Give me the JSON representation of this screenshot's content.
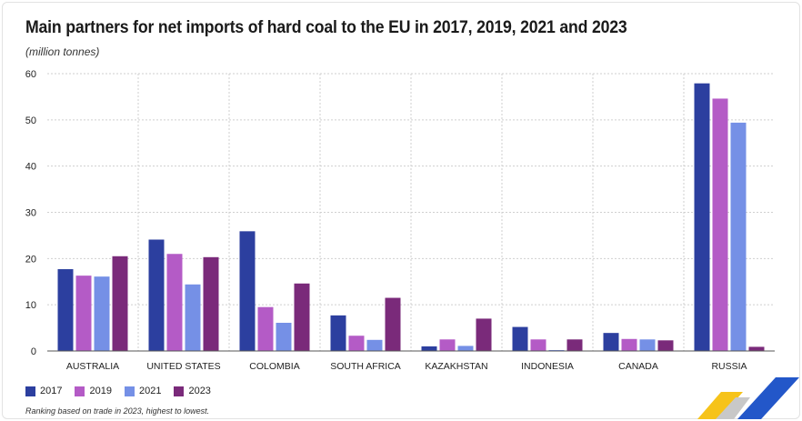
{
  "title": "Main partners for net imports of hard coal to the EU in 2017, 2019, 2021 and 2023",
  "subtitle": "(million tonnes)",
  "note": "Ranking based on trade in 2023, highest to lowest.",
  "legend": [
    {
      "label": "2017",
      "color": "#2c3f9f"
    },
    {
      "label": "2019",
      "color": "#b45bc6"
    },
    {
      "label": "2021",
      "color": "#7590e6"
    },
    {
      "label": "2023",
      "color": "#7a2a7a"
    }
  ],
  "chart_data": {
    "type": "bar",
    "title": "Main partners for net imports of hard coal to the EU in 2017, 2019, 2021 and 2023",
    "ylabel": "(million tonnes)",
    "ylim": [
      0,
      60
    ],
    "yticks": [
      0,
      10,
      20,
      30,
      40,
      50,
      60
    ],
    "grid": true,
    "legend_position": "bottom-left",
    "categories": [
      "AUSTRALIA",
      "UNITED STATES",
      "COLOMBIA",
      "SOUTH AFRICA",
      "KAZAKHSTAN",
      "INDONESIA",
      "CANADA",
      "RUSSIA"
    ],
    "series": [
      {
        "name": "2017",
        "color": "#2c3f9f",
        "values": [
          17.7,
          24.1,
          25.9,
          7.7,
          1.0,
          5.2,
          3.9,
          57.9
        ]
      },
      {
        "name": "2019",
        "color": "#b45bc6",
        "values": [
          16.3,
          21.0,
          9.5,
          3.3,
          2.5,
          2.5,
          2.6,
          54.6
        ]
      },
      {
        "name": "2021",
        "color": "#7590e6",
        "values": [
          16.1,
          14.4,
          6.1,
          2.4,
          1.1,
          0.2,
          2.5,
          49.4
        ]
      },
      {
        "name": "2023",
        "color": "#7a2a7a",
        "values": [
          20.5,
          20.3,
          14.6,
          11.5,
          7.0,
          2.5,
          2.3,
          0.9
        ]
      }
    ]
  }
}
